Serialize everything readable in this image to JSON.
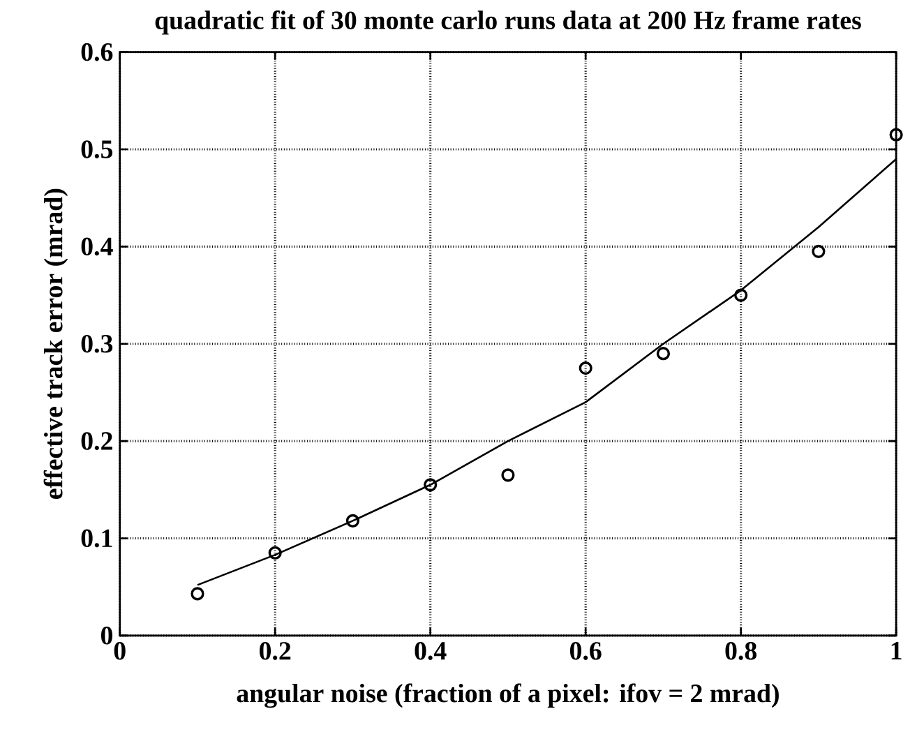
{
  "chart_data": {
    "type": "scatter",
    "title": "quadratic fit of 30 monte carlo runs data at 200 Hz frame rates",
    "xlabel": "angular noise (fraction of a pixel: ifov = 2 mrad)",
    "ylabel": "effective track error (mrad)",
    "xlim": [
      0,
      1
    ],
    "ylim": [
      0,
      0.6
    ],
    "xticks": [
      0,
      0.2,
      0.4,
      0.6,
      0.8,
      1
    ],
    "yticks": [
      0,
      0.1,
      0.2,
      0.3,
      0.4,
      0.5,
      0.6
    ],
    "grid": true,
    "series": [
      {
        "marker": "circle",
        "color": "#000000",
        "x": [
          0.1,
          0.2,
          0.3,
          0.4,
          0.5,
          0.6,
          0.7,
          0.8,
          0.9,
          1.0
        ],
        "values": [
          0.043,
          0.085,
          0.118,
          0.155,
          0.165,
          0.275,
          0.29,
          0.35,
          0.395,
          0.515
        ]
      },
      {
        "type": "line",
        "marker": "none",
        "line_style": "solid",
        "color": "#000000",
        "x": [
          0.1,
          0.2,
          0.3,
          0.4,
          0.5,
          0.6,
          0.7,
          0.8,
          0.9,
          1.0
        ],
        "values": [
          0.052,
          0.083,
          0.118,
          0.155,
          0.2,
          0.24,
          0.3,
          0.355,
          0.42,
          0.49
        ]
      }
    ]
  }
}
